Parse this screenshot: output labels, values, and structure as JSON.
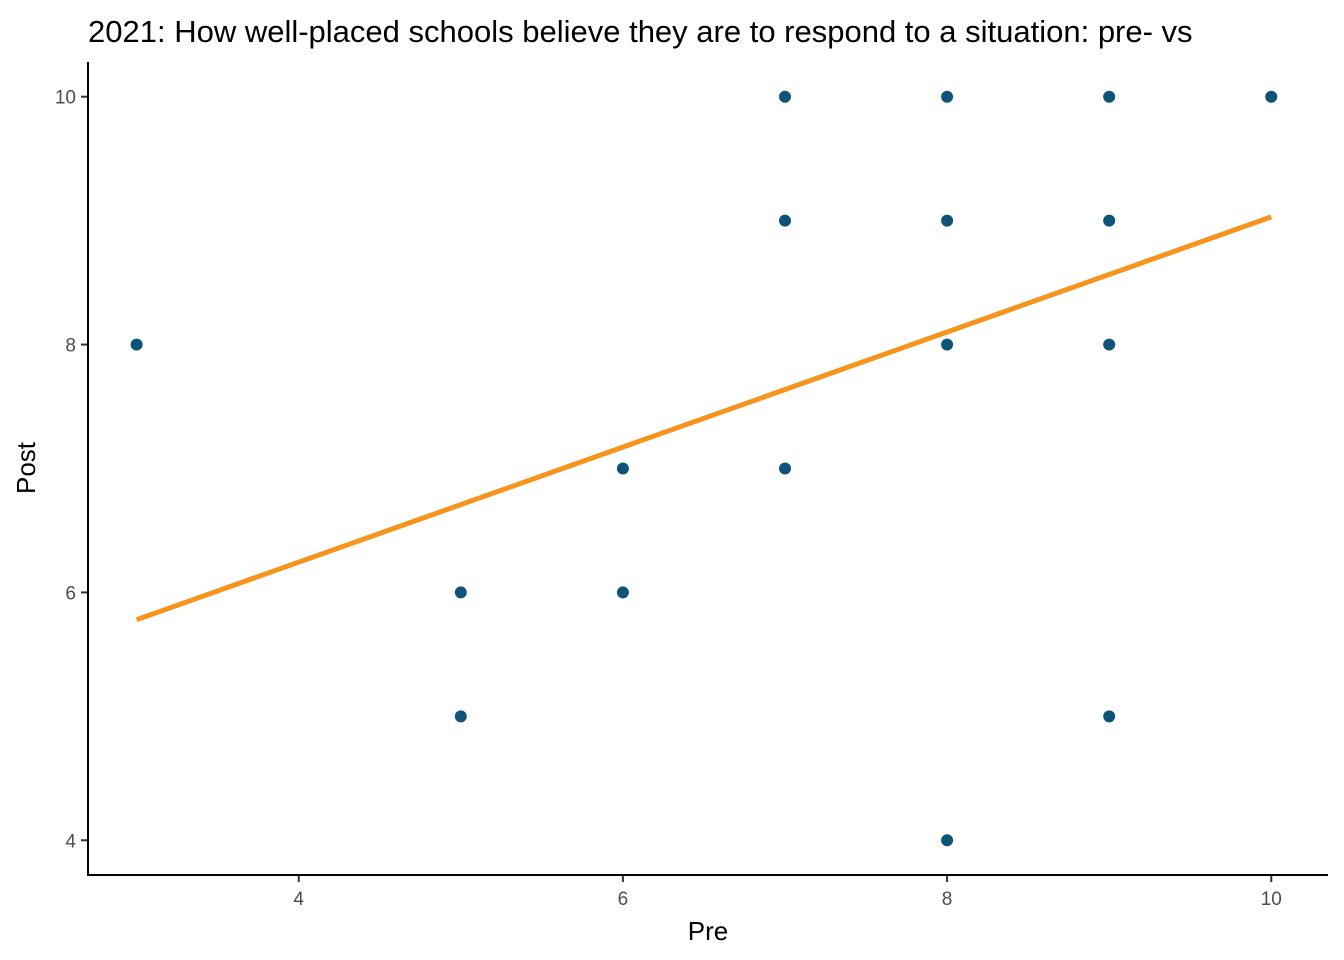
{
  "chart_data": {
    "type": "scatter",
    "title": "2021: How well-placed schools believe they are to respond to a situation: pre- vs",
    "xlabel": "Pre",
    "ylabel": "Post",
    "xlim": [
      2.7,
      10.35
    ],
    "ylim": [
      3.72,
      10.28
    ],
    "x_ticks": [
      4,
      6,
      8,
      10
    ],
    "y_ticks": [
      4,
      6,
      8,
      10
    ],
    "x_tick_labels": [
      "4",
      "6",
      "8",
      "10"
    ],
    "y_tick_labels": [
      "4",
      "6",
      "8",
      "10"
    ],
    "grid": false,
    "legend": "none",
    "point_color": "#0e5478",
    "line_color": "#f7941d",
    "points": [
      {
        "x": 3,
        "y": 8
      },
      {
        "x": 5,
        "y": 6
      },
      {
        "x": 5,
        "y": 5
      },
      {
        "x": 6,
        "y": 7
      },
      {
        "x": 6,
        "y": 6
      },
      {
        "x": 7,
        "y": 10
      },
      {
        "x": 7,
        "y": 9
      },
      {
        "x": 7,
        "y": 7
      },
      {
        "x": 8,
        "y": 10
      },
      {
        "x": 8,
        "y": 9
      },
      {
        "x": 8,
        "y": 8
      },
      {
        "x": 8,
        "y": 4
      },
      {
        "x": 9,
        "y": 10
      },
      {
        "x": 9,
        "y": 9
      },
      {
        "x": 9,
        "y": 8
      },
      {
        "x": 9,
        "y": 5
      },
      {
        "x": 10,
        "y": 10
      }
    ],
    "trend_line": {
      "type": "linear",
      "x": [
        3,
        10
      ],
      "y": [
        5.78,
        9.03
      ]
    }
  }
}
